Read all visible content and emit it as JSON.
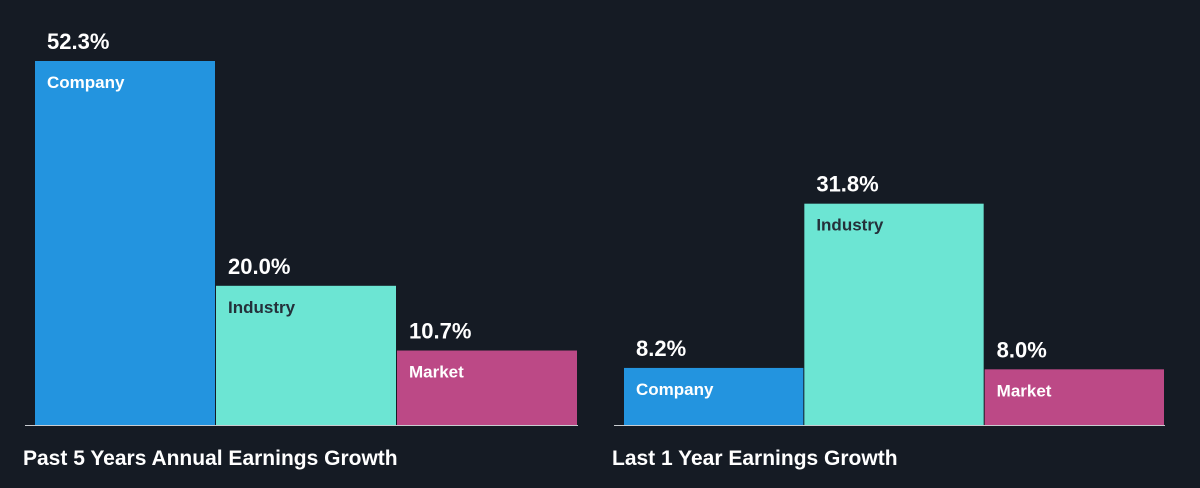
{
  "chart_data": [
    {
      "type": "bar",
      "title": "Past 5 Years Annual Earnings Growth",
      "categories": [
        "Company",
        "Industry",
        "Market"
      ],
      "values": [
        52.3,
        20.0,
        10.7
      ],
      "value_labels": [
        "52.3%",
        "20.0%",
        "10.7%"
      ],
      "colors": [
        "#2394df",
        "#6ce5d3",
        "#bc4986"
      ],
      "label_colors": [
        "#ffffff",
        "#24303a",
        "#ffffff"
      ],
      "unit": "%",
      "ylim": [
        0,
        52.3
      ],
      "grid": false,
      "legend": "none"
    },
    {
      "type": "bar",
      "title": "Last 1 Year Earnings Growth",
      "categories": [
        "Company",
        "Industry",
        "Market"
      ],
      "values": [
        8.2,
        31.8,
        8.0
      ],
      "value_labels": [
        "8.2%",
        "31.8%",
        "8.0%"
      ],
      "colors": [
        "#2394df",
        "#6ce5d3",
        "#bc4986"
      ],
      "label_colors": [
        "#ffffff",
        "#24303a",
        "#ffffff"
      ],
      "unit": "%",
      "ylim": [
        0,
        52.3
      ],
      "grid": false,
      "legend": "none"
    }
  ],
  "colors": {
    "background": "#151b24",
    "axis": "#c8ccd0"
  }
}
